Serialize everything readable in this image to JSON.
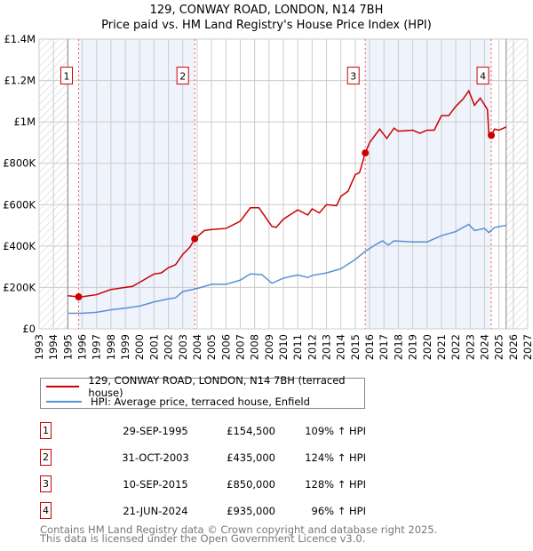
{
  "title": "129, CONWAY ROAD, LONDON, N14 7BH",
  "subtitle": "Price paid vs. HM Land Registry's House Price Index (HPI)",
  "chart_data": {
    "type": "line",
    "xlim": [
      1993,
      2027
    ],
    "ylim": [
      0,
      1400000
    ],
    "x_ticks": [
      "1993",
      "1994",
      "1995",
      "1996",
      "1997",
      "1998",
      "1999",
      "2000",
      "2001",
      "2002",
      "2003",
      "2004",
      "2005",
      "2006",
      "2007",
      "2008",
      "2009",
      "2010",
      "2011",
      "2012",
      "2013",
      "2014",
      "2015",
      "2016",
      "2017",
      "2018",
      "2019",
      "2020",
      "2021",
      "2022",
      "2023",
      "2024",
      "2025",
      "2026",
      "2027"
    ],
    "y_ticks": [
      {
        "v": 0,
        "label": "£0"
      },
      {
        "v": 200000,
        "label": "£200K"
      },
      {
        "v": 400000,
        "label": "£400K"
      },
      {
        "v": 600000,
        "label": "£600K"
      },
      {
        "v": 800000,
        "label": "£800K"
      },
      {
        "v": 1000000,
        "label": "£1M"
      },
      {
        "v": 1200000,
        "label": "£1.2M"
      },
      {
        "v": 1400000,
        "label": "£1.4M"
      }
    ],
    "data_range": [
      1995,
      2025.5
    ],
    "shaded_periods": [
      [
        1995.75,
        2003.83
      ],
      [
        2015.7,
        2024.47
      ]
    ],
    "series": [
      {
        "name": "129, CONWAY ROAD, LONDON, N14 7BH (terraced house)",
        "color": "#cc0000",
        "points": [
          [
            1995,
            160000
          ],
          [
            1995.75,
            154500
          ],
          [
            1996,
            155000
          ],
          [
            1997,
            165000
          ],
          [
            1998,
            190000
          ],
          [
            1999,
            200000
          ],
          [
            1999.5,
            205000
          ],
          [
            2000,
            225000
          ],
          [
            2001,
            265000
          ],
          [
            2001.5,
            270000
          ],
          [
            2002,
            295000
          ],
          [
            2002.5,
            310000
          ],
          [
            2003,
            360000
          ],
          [
            2003.5,
            395000
          ],
          [
            2003.83,
            435000
          ],
          [
            2004.5,
            475000
          ],
          [
            2005,
            480000
          ],
          [
            2006,
            485000
          ],
          [
            2007,
            520000
          ],
          [
            2007.7,
            585000
          ],
          [
            2008.3,
            585000
          ],
          [
            2009.2,
            495000
          ],
          [
            2009.5,
            490000
          ],
          [
            2010,
            530000
          ],
          [
            2011,
            575000
          ],
          [
            2011.7,
            550000
          ],
          [
            2012,
            580000
          ],
          [
            2012.5,
            560000
          ],
          [
            2013,
            600000
          ],
          [
            2013.7,
            595000
          ],
          [
            2014,
            640000
          ],
          [
            2014.5,
            665000
          ],
          [
            2015,
            745000
          ],
          [
            2015.3,
            755000
          ],
          [
            2015.7,
            850000
          ],
          [
            2016,
            900000
          ],
          [
            2016.7,
            965000
          ],
          [
            2017.2,
            920000
          ],
          [
            2017.7,
            970000
          ],
          [
            2018,
            955000
          ],
          [
            2019,
            960000
          ],
          [
            2019.5,
            945000
          ],
          [
            2020,
            960000
          ],
          [
            2020.5,
            960000
          ],
          [
            2021,
            1030000
          ],
          [
            2021.5,
            1030000
          ],
          [
            2022,
            1075000
          ],
          [
            2022.5,
            1110000
          ],
          [
            2022.9,
            1150000
          ],
          [
            2023.3,
            1080000
          ],
          [
            2023.7,
            1115000
          ],
          [
            2024.2,
            1060000
          ],
          [
            2024.3,
            940000
          ],
          [
            2024.47,
            935000
          ],
          [
            2024.7,
            965000
          ],
          [
            2025,
            960000
          ],
          [
            2025.5,
            975000
          ]
        ]
      },
      {
        "name": "HPI: Average price, terraced house, Enfield",
        "color": "#5b8fd6",
        "points": [
          [
            1995,
            75000
          ],
          [
            1996,
            75000
          ],
          [
            1997,
            80000
          ],
          [
            1998,
            92000
          ],
          [
            1999,
            100000
          ],
          [
            2000,
            110000
          ],
          [
            2001,
            130000
          ],
          [
            2002,
            145000
          ],
          [
            2002.5,
            150000
          ],
          [
            2003,
            180000
          ],
          [
            2004,
            195000
          ],
          [
            2005,
            215000
          ],
          [
            2006,
            215000
          ],
          [
            2007,
            235000
          ],
          [
            2007.7,
            265000
          ],
          [
            2008.5,
            262000
          ],
          [
            2009.2,
            220000
          ],
          [
            2010,
            245000
          ],
          [
            2011,
            260000
          ],
          [
            2011.7,
            248000
          ],
          [
            2012,
            258000
          ],
          [
            2013,
            270000
          ],
          [
            2014,
            290000
          ],
          [
            2015,
            335000
          ],
          [
            2015.7,
            375000
          ],
          [
            2016.5,
            410000
          ],
          [
            2016.9,
            425000
          ],
          [
            2017.3,
            405000
          ],
          [
            2017.7,
            425000
          ],
          [
            2019,
            420000
          ],
          [
            2020,
            420000
          ],
          [
            2021,
            450000
          ],
          [
            2022,
            470000
          ],
          [
            2022.9,
            505000
          ],
          [
            2023.3,
            475000
          ],
          [
            2024,
            485000
          ],
          [
            2024.3,
            465000
          ],
          [
            2024.7,
            490000
          ],
          [
            2025.5,
            500000
          ]
        ]
      }
    ],
    "sales": [
      {
        "label": "1",
        "x": 1995.75,
        "price": 154500
      },
      {
        "label": "2",
        "x": 2003.83,
        "price": 435000
      },
      {
        "label": "3",
        "x": 2015.7,
        "price": 850000
      },
      {
        "label": "4",
        "x": 2024.47,
        "price": 935000
      }
    ]
  },
  "legend": {
    "items": [
      {
        "label": "129, CONWAY ROAD, LONDON, N14 7BH (terraced house)",
        "color": "#cc0000"
      },
      {
        "label": "HPI: Average price, terraced house, Enfield",
        "color": "#5b8fd6"
      }
    ]
  },
  "table": [
    {
      "num": "1",
      "date": "29-SEP-1995",
      "price": "£154,500",
      "hpi": "109% ↑ HPI"
    },
    {
      "num": "2",
      "date": "31-OCT-2003",
      "price": "£435,000",
      "hpi": "124% ↑ HPI"
    },
    {
      "num": "3",
      "date": "10-SEP-2015",
      "price": "£850,000",
      "hpi": "128% ↑ HPI"
    },
    {
      "num": "4",
      "date": "21-JUN-2024",
      "price": "£935,000",
      "hpi": "96% ↑ HPI"
    }
  ],
  "footer": {
    "line1": "Contains HM Land Registry data © Crown copyright and database right 2025.",
    "line2": "This data is licensed under the Open Government Licence v3.0."
  }
}
